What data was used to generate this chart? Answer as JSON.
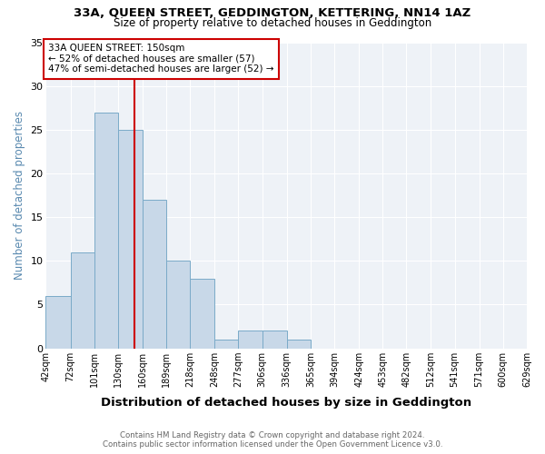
{
  "title": "33A, QUEEN STREET, GEDDINGTON, KETTERING, NN14 1AZ",
  "subtitle": "Size of property relative to detached houses in Geddington",
  "xlabel": "Distribution of detached houses by size in Geddington",
  "ylabel": "Number of detached properties",
  "bin_labels": [
    "42sqm",
    "72sqm",
    "101sqm",
    "130sqm",
    "160sqm",
    "189sqm",
    "218sqm",
    "248sqm",
    "277sqm",
    "306sqm",
    "336sqm",
    "365sqm",
    "394sqm",
    "424sqm",
    "453sqm",
    "482sqm",
    "512sqm",
    "541sqm",
    "571sqm",
    "600sqm",
    "629sqm"
  ],
  "bin_edges": [
    42,
    72,
    101,
    130,
    160,
    189,
    218,
    248,
    277,
    306,
    336,
    365,
    394,
    424,
    453,
    482,
    512,
    541,
    571,
    600,
    629
  ],
  "counts": [
    6,
    11,
    27,
    25,
    17,
    10,
    8,
    1,
    2,
    2,
    1,
    0,
    0,
    0,
    0,
    0,
    0,
    0,
    0,
    0
  ],
  "bar_color": "#c8d8e8",
  "bar_edge_color": "#7aaac8",
  "property_size": 150,
  "vline_color": "#cc0000",
  "annotation_line1": "33A QUEEN STREET: 150sqm",
  "annotation_line2": "← 52% of detached houses are smaller (57)",
  "annotation_line3": "47% of semi-detached houses are larger (52) →",
  "annotation_box_color": "#ffffff",
  "annotation_box_edge_color": "#cc0000",
  "ylim": [
    0,
    35
  ],
  "yticks": [
    0,
    5,
    10,
    15,
    20,
    25,
    30,
    35
  ],
  "background_color": "#eef2f7",
  "footer_line1": "Contains HM Land Registry data © Crown copyright and database right 2024.",
  "footer_line2": "Contains public sector information licensed under the Open Government Licence v3.0."
}
